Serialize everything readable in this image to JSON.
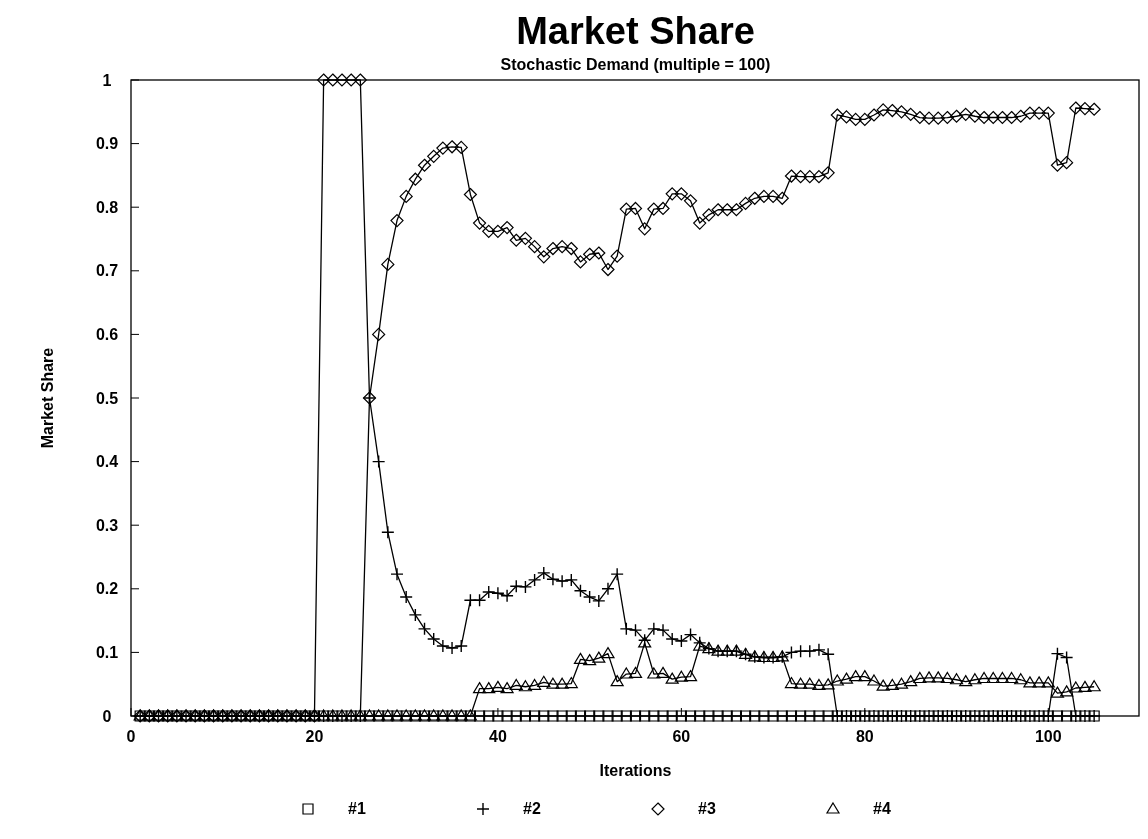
{
  "chart_data": {
    "type": "line",
    "title": "Market Share",
    "subtitle": "Stochastic Demand (multiple = 100)",
    "xlabel": "Iterations",
    "ylabel": "Market Share",
    "x": [
      1,
      2,
      3,
      4,
      5,
      6,
      7,
      8,
      9,
      10,
      11,
      12,
      13,
      14,
      15,
      16,
      17,
      18,
      19,
      20,
      21,
      22,
      23,
      24,
      25,
      26,
      27,
      28,
      29,
      30,
      31,
      32,
      33,
      34,
      35,
      36,
      37,
      38,
      39,
      40,
      41,
      42,
      43,
      44,
      45,
      46,
      47,
      48,
      49,
      50,
      51,
      52,
      53,
      54,
      55,
      56,
      57,
      58,
      59,
      60,
      61,
      62,
      63,
      64,
      65,
      66,
      67,
      68,
      69,
      70,
      71,
      72,
      73,
      74,
      75,
      76,
      77,
      78,
      79,
      80,
      81,
      82,
      83,
      84,
      85,
      86,
      87,
      88,
      89,
      90,
      91,
      92,
      93,
      94,
      95,
      96,
      97,
      98,
      99,
      100,
      101,
      102,
      103,
      104,
      105
    ],
    "series": [
      {
        "name": "#1",
        "color": "#000000",
        "marker": "square",
        "values": [
          0,
          0,
          0,
          0,
          0,
          0,
          0,
          0,
          0,
          0,
          0,
          0,
          0,
          0,
          0,
          0,
          0,
          0,
          0,
          0,
          0,
          0,
          0,
          0,
          0,
          0,
          0,
          0,
          0,
          0,
          0,
          0,
          0,
          0,
          0,
          0,
          0,
          0,
          0,
          0,
          0,
          0,
          0,
          0,
          0,
          0,
          0,
          0,
          0,
          0,
          0,
          0,
          0,
          0,
          0,
          0,
          0,
          0,
          0,
          0,
          0,
          0,
          0,
          0,
          0,
          0,
          0,
          0,
          0,
          0,
          0,
          0,
          0,
          0,
          0,
          0,
          0,
          0,
          0,
          0,
          0,
          0,
          0,
          0,
          0,
          0,
          0,
          0,
          0,
          0,
          0,
          0,
          0,
          0,
          0,
          0,
          0,
          0,
          0,
          0,
          0,
          0,
          0,
          0,
          0
        ]
      },
      {
        "name": "#2",
        "color": "#000000",
        "marker": "cross",
        "values": [
          0,
          0,
          0,
          0,
          0,
          0,
          0,
          0,
          0,
          0,
          0,
          0,
          0,
          0,
          0,
          0,
          0,
          0,
          0,
          0,
          0,
          0,
          0,
          0,
          0,
          0.5,
          0.4,
          0.289,
          0.223,
          0.187,
          0.159,
          0.137,
          0.121,
          0.11,
          0.107,
          0.11,
          0.182,
          0.182,
          0.195,
          0.193,
          0.189,
          0.204,
          0.203,
          0.214,
          0.225,
          0.215,
          0.212,
          0.214,
          0.197,
          0.187,
          0.181,
          0.2,
          0.223,
          0.137,
          0.135,
          0.119,
          0.137,
          0.135,
          0.121,
          0.118,
          0.128,
          0.115,
          0.106,
          0.102,
          0.102,
          0.102,
          0.097,
          0.093,
          0.092,
          0.092,
          0.093,
          0.1,
          0.102,
          0.102,
          0.104,
          0.097,
          0,
          0,
          0,
          0,
          0,
          0,
          0,
          0,
          0,
          0,
          0,
          0,
          0,
          0,
          0,
          0,
          0,
          0,
          0,
          0,
          0,
          0,
          0,
          0,
          0.098,
          0.092,
          0,
          0,
          0
        ]
      },
      {
        "name": "#3",
        "color": "#000000",
        "marker": "diamond",
        "values": [
          0,
          0,
          0,
          0,
          0,
          0,
          0,
          0,
          0,
          0,
          0,
          0,
          0,
          0,
          0,
          0,
          0,
          0,
          0,
          0,
          1,
          1,
          1,
          1,
          1,
          0.5,
          0.6,
          0.71,
          0.779,
          0.817,
          0.844,
          0.866,
          0.88,
          0.893,
          0.895,
          0.894,
          0.82,
          0.775,
          0.762,
          0.762,
          0.768,
          0.748,
          0.751,
          0.738,
          0.722,
          0.735,
          0.738,
          0.735,
          0.714,
          0.726,
          0.728,
          0.702,
          0.723,
          0.797,
          0.798,
          0.766,
          0.797,
          0.798,
          0.821,
          0.821,
          0.81,
          0.775,
          0.788,
          0.796,
          0.796,
          0.796,
          0.806,
          0.814,
          0.817,
          0.817,
          0.814,
          0.849,
          0.848,
          0.848,
          0.848,
          0.854,
          0.945,
          0.942,
          0.938,
          0.938,
          0.945,
          0.953,
          0.952,
          0.95,
          0.946,
          0.941,
          0.94,
          0.94,
          0.941,
          0.943,
          0.946,
          0.943,
          0.941,
          0.941,
          0.941,
          0.941,
          0.943,
          0.948,
          0.948,
          0.948,
          0.866,
          0.87,
          0.956,
          0.955,
          0.954
        ]
      },
      {
        "name": "#4",
        "color": "#000000",
        "marker": "triangle",
        "values": [
          0,
          0,
          0,
          0,
          0,
          0,
          0,
          0,
          0,
          0,
          0,
          0,
          0,
          0,
          0,
          0,
          0,
          0,
          0,
          0,
          0,
          0,
          0,
          0,
          0,
          0,
          0,
          0,
          0,
          0,
          0,
          0,
          0,
          0,
          0,
          0,
          0,
          0.043,
          0.043,
          0.045,
          0.043,
          0.048,
          0.046,
          0.048,
          0.053,
          0.05,
          0.05,
          0.051,
          0.089,
          0.087,
          0.091,
          0.098,
          0.054,
          0.066,
          0.067,
          0.115,
          0.066,
          0.067,
          0.058,
          0.061,
          0.062,
          0.11,
          0.106,
          0.102,
          0.102,
          0.102,
          0.097,
          0.093,
          0.092,
          0.092,
          0.093,
          0.051,
          0.05,
          0.05,
          0.048,
          0.049,
          0.055,
          0.058,
          0.062,
          0.062,
          0.055,
          0.047,
          0.048,
          0.05,
          0.054,
          0.059,
          0.06,
          0.06,
          0.059,
          0.057,
          0.054,
          0.057,
          0.059,
          0.059,
          0.059,
          0.059,
          0.057,
          0.052,
          0.052,
          0.052,
          0.036,
          0.038,
          0.044,
          0.045,
          0.046
        ]
      }
    ],
    "xlim": [
      0,
      110
    ],
    "xticks": [
      0,
      20,
      40,
      60,
      80,
      100
    ],
    "ylim": [
      0,
      1
    ],
    "yticks": [
      0,
      0.1,
      0.2,
      0.3,
      0.4,
      0.5,
      0.6,
      0.7,
      0.8,
      0.9,
      1
    ],
    "legend": "bottom",
    "grid": false,
    "line_style": "solid"
  }
}
